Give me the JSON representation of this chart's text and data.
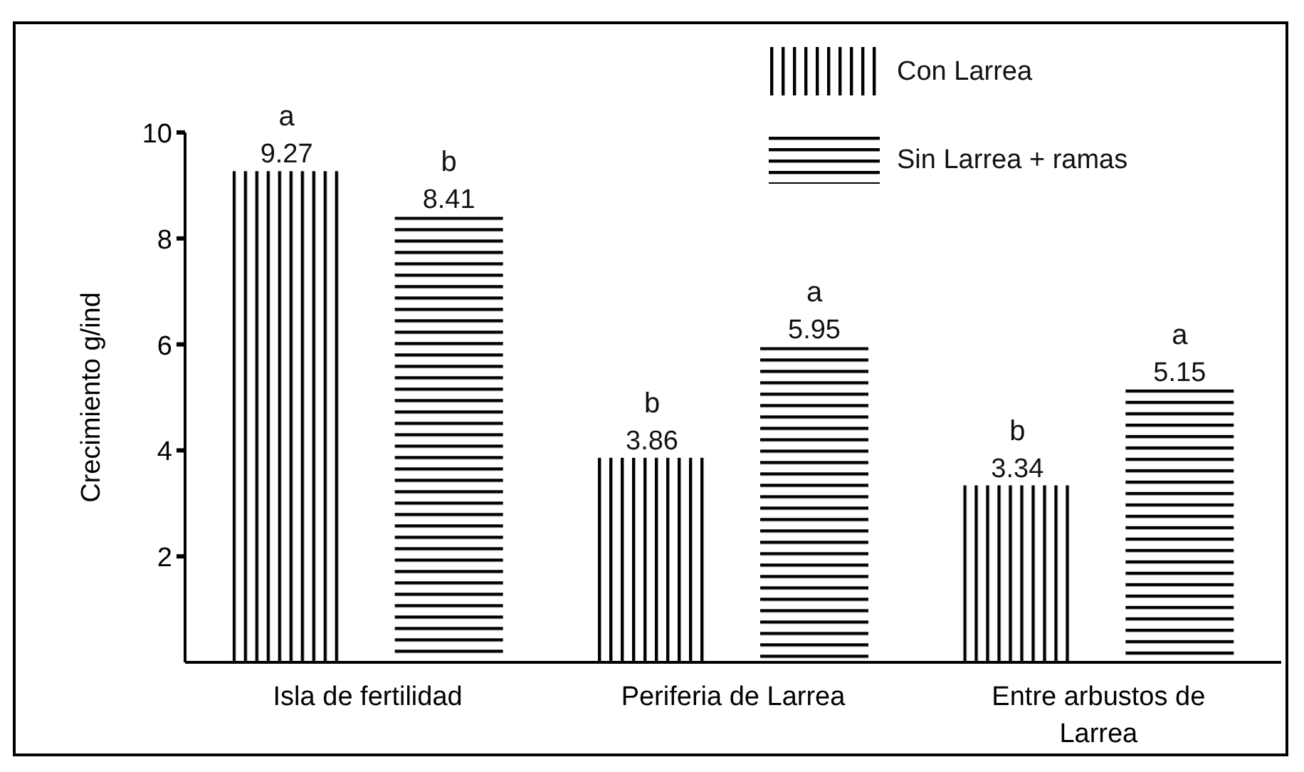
{
  "chart_data": {
    "type": "bar",
    "ylabel": "Crecimiento g/ind",
    "categories": [
      "Isla de fertilidad",
      "Periferia de Larrea",
      "Entre arbustos de Larrea"
    ],
    "series": [
      {
        "name": "Con Larrea",
        "color": "#000000",
        "values": [
          9.27,
          3.86,
          3.34
        ]
      },
      {
        "name": "Sin Larrea + ramas",
        "color": "#000000",
        "values": [
          8.41,
          5.95,
          5.15
        ]
      }
    ],
    "ylim": [
      0,
      10
    ],
    "yticks": [
      2,
      4,
      6,
      8,
      10
    ],
    "data_labels": true,
    "legend": "top right",
    "grid": false,
    "annotations": [
      "a",
      "b",
      "b",
      "a",
      "b",
      "a"
    ]
  }
}
